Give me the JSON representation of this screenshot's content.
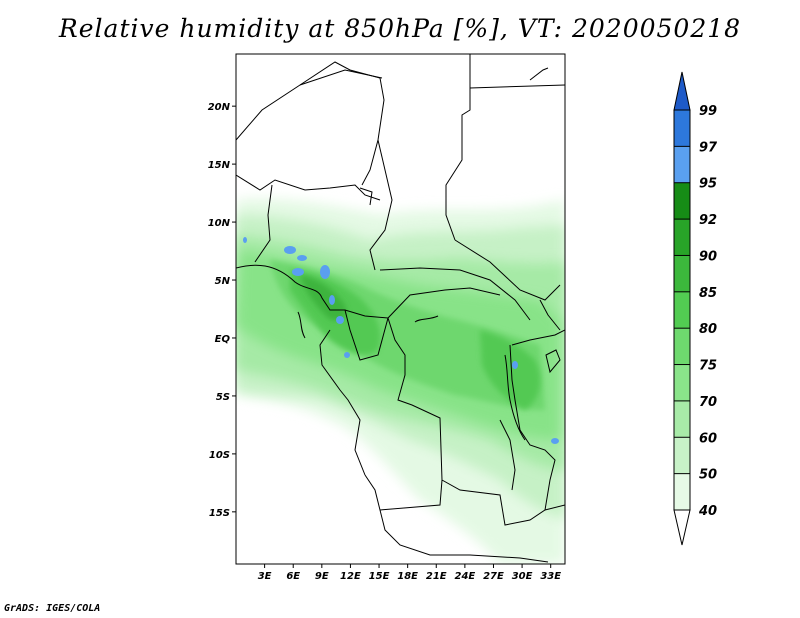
{
  "title": "Relative humidity at 850hPa [%], VT: 2020050218",
  "footer": "GrADS: IGES/COLA",
  "map": {
    "lat_ticks": [
      {
        "value": 20,
        "label": "20N"
      },
      {
        "value": 15,
        "label": "15N"
      },
      {
        "value": 10,
        "label": "10N"
      },
      {
        "value": 5,
        "label": "5N"
      },
      {
        "value": 0,
        "label": "EQ"
      },
      {
        "value": -5,
        "label": "5S"
      },
      {
        "value": -10,
        "label": "10S"
      },
      {
        "value": -15,
        "label": "15S"
      }
    ],
    "lon_ticks": [
      {
        "value": 3,
        "label": "3E"
      },
      {
        "value": 6,
        "label": "6E"
      },
      {
        "value": 9,
        "label": "9E"
      },
      {
        "value": 12,
        "label": "12E"
      },
      {
        "value": 15,
        "label": "15E"
      },
      {
        "value": 18,
        "label": "18E"
      },
      {
        "value": 21,
        "label": "21E"
      },
      {
        "value": 24,
        "label": "24E"
      },
      {
        "value": 27,
        "label": "27E"
      },
      {
        "value": 30,
        "label": "30E"
      },
      {
        "value": 33,
        "label": "33E"
      }
    ],
    "extent": {
      "lon_min": 0,
      "lon_max": 34.5,
      "lat_min": -19.5,
      "lat_max": 24.5
    }
  },
  "colorbar": {
    "levels": [
      {
        "label": "40",
        "color": "#ffffff"
      },
      {
        "label": "50",
        "color": "#e6fae6"
      },
      {
        "label": "60",
        "color": "#c8f2c8"
      },
      {
        "label": "70",
        "color": "#a8eba8"
      },
      {
        "label": "75",
        "color": "#8ae48a"
      },
      {
        "label": "80",
        "color": "#6ed96e"
      },
      {
        "label": "85",
        "color": "#52cc52"
      },
      {
        "label": "90",
        "color": "#3cb83c"
      },
      {
        "label": "92",
        "color": "#28a428"
      },
      {
        "label": "95",
        "color": "#168c16"
      },
      {
        "label": "97",
        "color": "#5aa0f0"
      },
      {
        "label": "99",
        "color": "#2d78dc"
      }
    ],
    "top_color": "#1e5ac8",
    "bottom_color": "#ffffff"
  }
}
